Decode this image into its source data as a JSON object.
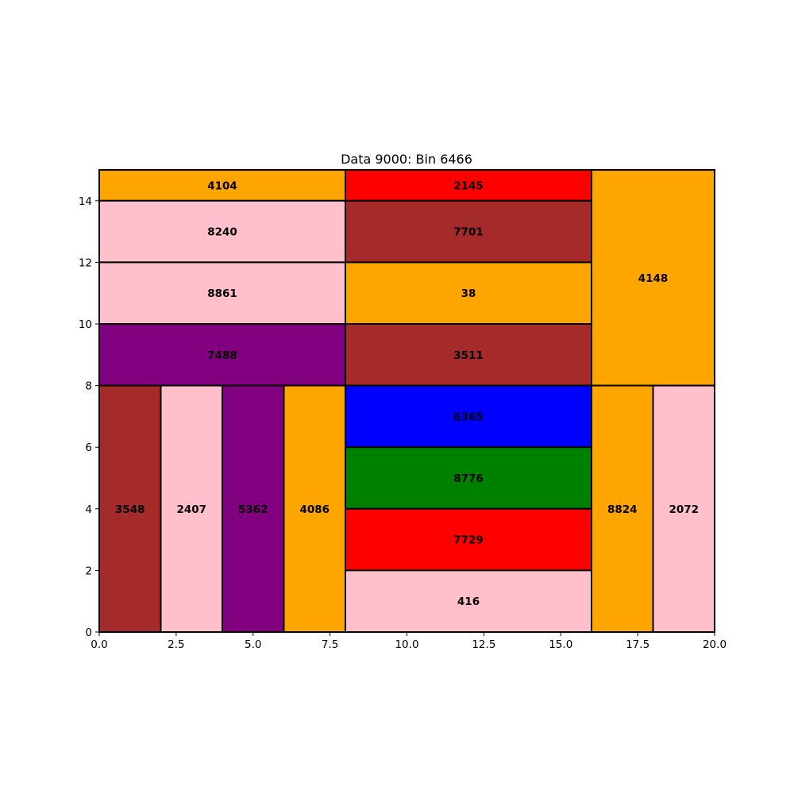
{
  "chart_data": {
    "type": "treemap",
    "title": "Data 9000: Bin 6466",
    "xlabel": "",
    "ylabel": "",
    "xlim": [
      0,
      20
    ],
    "ylim": [
      0,
      15
    ],
    "x_ticks": [
      0,
      2.5,
      5,
      7.5,
      10,
      12.5,
      15,
      17.5,
      20
    ],
    "x_tick_labels": [
      "0.0",
      "2.5",
      "5.0",
      "7.5",
      "10.0",
      "12.5",
      "15.0",
      "17.5",
      "20.0"
    ],
    "y_ticks": [
      0,
      2,
      4,
      6,
      8,
      10,
      12,
      14
    ],
    "y_tick_labels": [
      "0",
      "2",
      "4",
      "6",
      "8",
      "10",
      "12",
      "14"
    ],
    "grid": false,
    "rectangles": [
      {
        "label": "4104",
        "x": 0,
        "y": 14,
        "w": 8,
        "h": 1,
        "color": "#FFA500"
      },
      {
        "label": "8240",
        "x": 0,
        "y": 12,
        "w": 8,
        "h": 2,
        "color": "#FFC0CB"
      },
      {
        "label": "8861",
        "x": 0,
        "y": 10,
        "w": 8,
        "h": 2,
        "color": "#FFC0CB"
      },
      {
        "label": "7488",
        "x": 0,
        "y": 8,
        "w": 8,
        "h": 2,
        "color": "#800080"
      },
      {
        "label": "3548",
        "x": 0,
        "y": 0,
        "w": 2,
        "h": 8,
        "color": "#A52A2A"
      },
      {
        "label": "2407",
        "x": 2,
        "y": 0,
        "w": 2,
        "h": 8,
        "color": "#FFC0CB"
      },
      {
        "label": "5362",
        "x": 4,
        "y": 0,
        "w": 2,
        "h": 8,
        "color": "#800080"
      },
      {
        "label": "4086",
        "x": 6,
        "y": 0,
        "w": 2,
        "h": 8,
        "color": "#FFA500"
      },
      {
        "label": "2145",
        "x": 8,
        "y": 14,
        "w": 8,
        "h": 1,
        "color": "#FF0000"
      },
      {
        "label": "7701",
        "x": 8,
        "y": 12,
        "w": 8,
        "h": 2,
        "color": "#A52A2A"
      },
      {
        "label": "38",
        "x": 8,
        "y": 10,
        "w": 8,
        "h": 2,
        "color": "#FFA500"
      },
      {
        "label": "3511",
        "x": 8,
        "y": 8,
        "w": 8,
        "h": 2,
        "color": "#A52A2A"
      },
      {
        "label": "6365",
        "x": 8,
        "y": 6,
        "w": 8,
        "h": 2,
        "color": "#0000FF"
      },
      {
        "label": "8776",
        "x": 8,
        "y": 4,
        "w": 8,
        "h": 2,
        "color": "#008000"
      },
      {
        "label": "7729",
        "x": 8,
        "y": 2,
        "w": 8,
        "h": 2,
        "color": "#FF0000"
      },
      {
        "label": "416",
        "x": 8,
        "y": 0,
        "w": 8,
        "h": 2,
        "color": "#FFC0CB"
      },
      {
        "label": "4148",
        "x": 16,
        "y": 8,
        "w": 4,
        "h": 7,
        "color": "#FFA500"
      },
      {
        "label": "8824",
        "x": 16,
        "y": 0,
        "w": 2,
        "h": 8,
        "color": "#FFA500"
      },
      {
        "label": "2072",
        "x": 18,
        "y": 0,
        "w": 2,
        "h": 8,
        "color": "#FFC0CB"
      }
    ]
  }
}
